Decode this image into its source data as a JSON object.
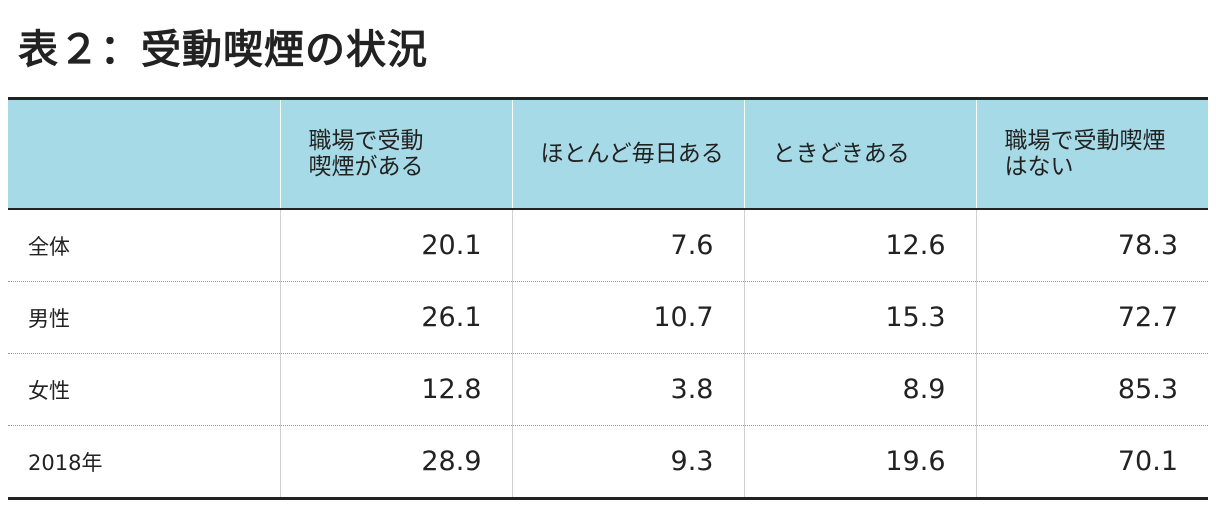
{
  "title": "表２：受動喫煙の状況",
  "table": {
    "headers": [
      "",
      "職場で受動喫煙がある",
      "ほとんど毎日ある",
      "ときどきある",
      "職場で受動喫煙はない"
    ],
    "header_lines": [
      [
        ""
      ],
      [
        "職場で受動",
        "喫煙がある"
      ],
      [
        "ほとんど毎日ある"
      ],
      [
        "ときどきある"
      ],
      [
        "職場で受動喫煙",
        "はない"
      ]
    ],
    "rows": [
      {
        "label": "全体",
        "values": [
          "20.1",
          "7.6",
          "12.6",
          "78.3"
        ]
      },
      {
        "label": "男性",
        "values": [
          "26.1",
          "10.7",
          "15.3",
          "72.7"
        ]
      },
      {
        "label": "女性",
        "values": [
          "12.8",
          "3.8",
          "8.9",
          "85.3"
        ]
      },
      {
        "label": "2018年",
        "values": [
          "28.9",
          "9.3",
          "19.6",
          "70.1"
        ]
      }
    ]
  },
  "colors": {
    "header_bg": "#a6dae6",
    "rule": "#222222"
  }
}
